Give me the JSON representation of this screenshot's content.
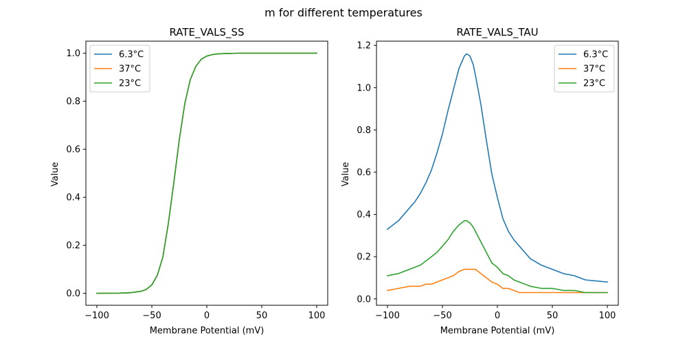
{
  "figure": {
    "suptitle": "m for different temperatures"
  },
  "chart_data": [
    {
      "type": "line",
      "title": "RATE_VALS_SS",
      "xlabel": "Membrane Potential (mV)",
      "ylabel": "Value",
      "xlim": [
        -110,
        110
      ],
      "ylim": [
        -0.05,
        1.05
      ],
      "xticks": [
        -100,
        -50,
        0,
        50,
        100
      ],
      "xtick_labels": [
        "−100",
        "−50",
        "0",
        "50",
        "100"
      ],
      "yticks": [
        0.0,
        0.2,
        0.4,
        0.6,
        0.8,
        1.0
      ],
      "ytick_labels": [
        "0.0",
        "0.2",
        "0.4",
        "0.6",
        "0.8",
        "1.0"
      ],
      "legend": "top-left",
      "grid": false,
      "series": [
        {
          "name": "6.3°C",
          "color": "#1f77b4",
          "x": [
            -100,
            -80,
            -70,
            -60,
            -55,
            -50,
            -45,
            -40,
            -35,
            -30,
            -25,
            -20,
            -15,
            -10,
            -5,
            0,
            5,
            10,
            15,
            20,
            30,
            40,
            60,
            100
          ],
          "y": [
            0.0,
            0.0005,
            0.002,
            0.008,
            0.016,
            0.035,
            0.075,
            0.15,
            0.29,
            0.46,
            0.64,
            0.79,
            0.89,
            0.945,
            0.975,
            0.988,
            0.994,
            0.997,
            0.998,
            0.999,
            1.0,
            1.0,
            1.0,
            1.0
          ]
        },
        {
          "name": "37°C",
          "color": "#ff7f0e",
          "x": [
            -100,
            -80,
            -70,
            -60,
            -55,
            -50,
            -45,
            -40,
            -35,
            -30,
            -25,
            -20,
            -15,
            -10,
            -5,
            0,
            5,
            10,
            15,
            20,
            30,
            40,
            60,
            100
          ],
          "y": [
            0.0,
            0.0005,
            0.002,
            0.008,
            0.016,
            0.035,
            0.075,
            0.15,
            0.29,
            0.46,
            0.64,
            0.79,
            0.89,
            0.945,
            0.975,
            0.988,
            0.994,
            0.997,
            0.998,
            0.999,
            1.0,
            1.0,
            1.0,
            1.0
          ]
        },
        {
          "name": "23°C",
          "color": "#2ca02c",
          "x": [
            -100,
            -80,
            -70,
            -60,
            -55,
            -50,
            -45,
            -40,
            -35,
            -30,
            -25,
            -20,
            -15,
            -10,
            -5,
            0,
            5,
            10,
            15,
            20,
            30,
            40,
            60,
            100
          ],
          "y": [
            0.0,
            0.0005,
            0.002,
            0.008,
            0.016,
            0.035,
            0.075,
            0.15,
            0.29,
            0.46,
            0.64,
            0.79,
            0.89,
            0.945,
            0.975,
            0.988,
            0.994,
            0.997,
            0.998,
            0.999,
            1.0,
            1.0,
            1.0,
            1.0
          ]
        }
      ]
    },
    {
      "type": "line",
      "title": "RATE_VALS_TAU",
      "xlabel": "Membrane Potential (mV)",
      "ylabel": "Value",
      "xlim": [
        -110,
        110
      ],
      "ylim": [
        -0.03,
        1.22
      ],
      "xticks": [
        -100,
        -50,
        0,
        50,
        100
      ],
      "xtick_labels": [
        "−100",
        "−50",
        "0",
        "50",
        "100"
      ],
      "yticks": [
        0.0,
        0.2,
        0.4,
        0.6,
        0.8,
        1.0,
        1.2
      ],
      "ytick_labels": [
        "0.0",
        "0.2",
        "0.4",
        "0.6",
        "0.8",
        "1.0",
        "1.2"
      ],
      "legend": "top-right",
      "grid": false,
      "series": [
        {
          "name": "6.3°C",
          "color": "#1f77b4",
          "x": [
            -100,
            -90,
            -80,
            -75,
            -70,
            -65,
            -60,
            -55,
            -50,
            -45,
            -40,
            -35,
            -30,
            -28,
            -25,
            -22,
            -20,
            -15,
            -10,
            -5,
            0,
            5,
            10,
            15,
            20,
            30,
            40,
            50,
            60,
            70,
            80,
            100
          ],
          "y": [
            0.33,
            0.37,
            0.43,
            0.46,
            0.5,
            0.55,
            0.61,
            0.69,
            0.78,
            0.89,
            0.99,
            1.09,
            1.15,
            1.16,
            1.15,
            1.11,
            1.06,
            0.92,
            0.75,
            0.59,
            0.48,
            0.38,
            0.32,
            0.28,
            0.25,
            0.19,
            0.16,
            0.14,
            0.12,
            0.11,
            0.09,
            0.08
          ]
        },
        {
          "name": "37°C",
          "color": "#ff7f0e",
          "x": [
            -100,
            -90,
            -80,
            -70,
            -65,
            -60,
            -55,
            -50,
            -45,
            -40,
            -35,
            -30,
            -25,
            -20,
            -15,
            -10,
            -5,
            0,
            5,
            10,
            15,
            20,
            30,
            50,
            80,
            100
          ],
          "y": [
            0.04,
            0.05,
            0.06,
            0.06,
            0.07,
            0.07,
            0.08,
            0.09,
            0.1,
            0.11,
            0.13,
            0.14,
            0.14,
            0.14,
            0.12,
            0.1,
            0.08,
            0.07,
            0.05,
            0.05,
            0.04,
            0.03,
            0.03,
            0.03,
            0.03,
            0.03
          ]
        },
        {
          "name": "23°C",
          "color": "#2ca02c",
          "x": [
            -100,
            -90,
            -80,
            -70,
            -65,
            -60,
            -55,
            -50,
            -45,
            -40,
            -35,
            -30,
            -28,
            -25,
            -22,
            -20,
            -15,
            -10,
            -5,
            0,
            5,
            10,
            15,
            20,
            30,
            40,
            50,
            60,
            70,
            80,
            100
          ],
          "y": [
            0.11,
            0.12,
            0.14,
            0.16,
            0.18,
            0.2,
            0.22,
            0.25,
            0.28,
            0.32,
            0.35,
            0.37,
            0.37,
            0.36,
            0.34,
            0.32,
            0.27,
            0.22,
            0.17,
            0.15,
            0.12,
            0.11,
            0.09,
            0.08,
            0.06,
            0.05,
            0.05,
            0.04,
            0.04,
            0.03,
            0.03
          ]
        }
      ]
    }
  ]
}
